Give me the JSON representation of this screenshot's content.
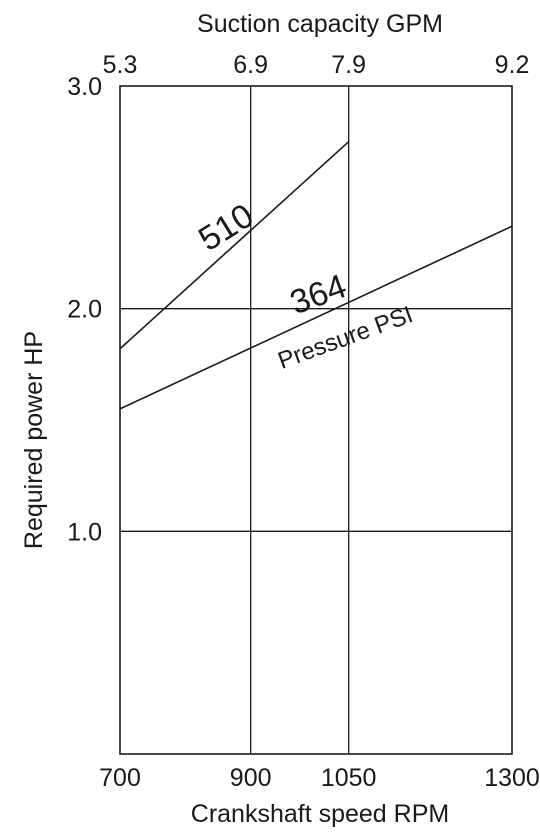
{
  "chart_data": {
    "type": "line",
    "title": "",
    "xlabel": "Crankshaft speed RPM",
    "x2label": "Suction capacity GPM",
    "ylabel": "Required power  HP",
    "xlim": [
      700,
      1300
    ],
    "ylim": [
      0,
      3.0
    ],
    "x_ticks": [
      700,
      900,
      1050,
      1300
    ],
    "x_tick_labels": [
      "700",
      "900",
      "1050",
      "1300"
    ],
    "x2_ticks": [
      700,
      900,
      1050,
      1300
    ],
    "x2_tick_labels": [
      "5.3",
      "6.9",
      "7.9",
      "9.2"
    ],
    "y_ticks": [
      1.0,
      2.0,
      3.0
    ],
    "y_tick_labels": [
      "1.0",
      "2.0",
      "3.0"
    ],
    "grid": true,
    "series_annotation": "Pressure PSI",
    "series": [
      {
        "name": "510",
        "x": [
          700,
          1050
        ],
        "y": [
          1.82,
          2.75
        ]
      },
      {
        "name": "364",
        "x": [
          700,
          1300
        ],
        "y": [
          1.55,
          2.37
        ]
      }
    ]
  }
}
